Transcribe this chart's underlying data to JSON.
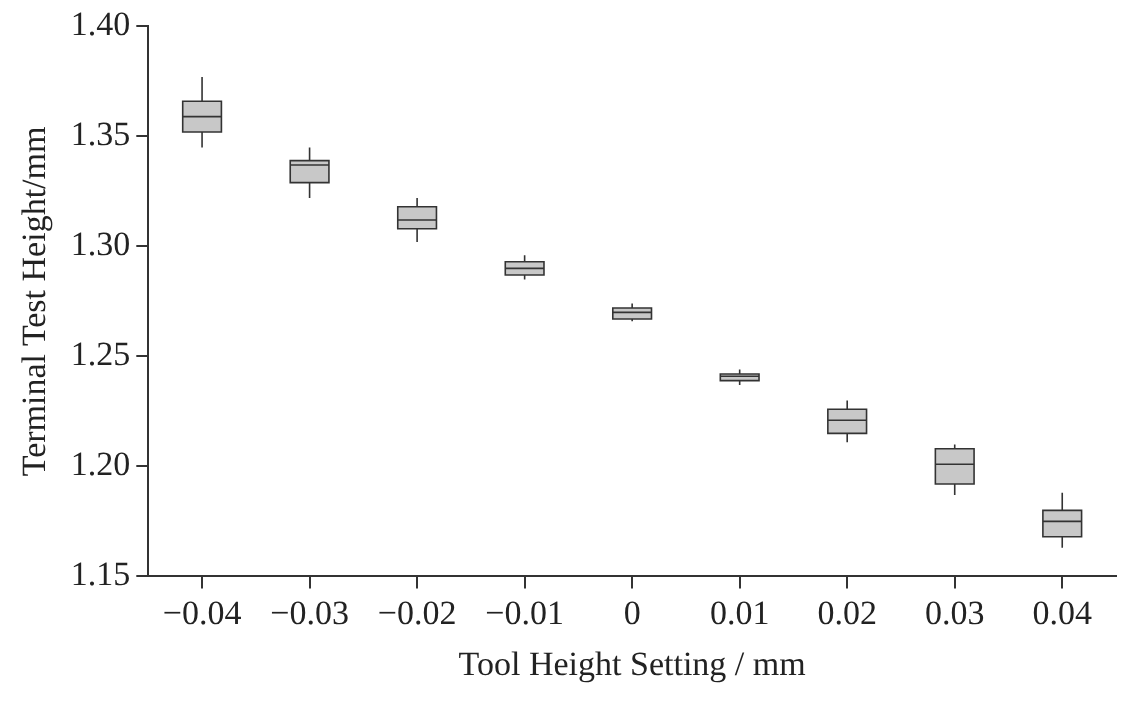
{
  "chart_data": {
    "type": "box",
    "xlabel": "Tool Height Setting / mm",
    "ylabel": "Terminal Test Height/mm",
    "categories": [
      "−0.04",
      "−0.03",
      "−0.02",
      "−0.01",
      "0",
      "0.01",
      "0.02",
      "0.03",
      "0.04"
    ],
    "color": "#c8c8c8",
    "boxes": [
      {
        "low": 1.345,
        "q1": 1.352,
        "median": 1.359,
        "q3": 1.366,
        "high": 1.377
      },
      {
        "low": 1.322,
        "q1": 1.329,
        "median": 1.337,
        "q3": 1.339,
        "high": 1.345
      },
      {
        "low": 1.302,
        "q1": 1.308,
        "median": 1.312,
        "q3": 1.318,
        "high": 1.322
      },
      {
        "low": 1.285,
        "q1": 1.287,
        "median": 1.29,
        "q3": 1.293,
        "high": 1.296
      },
      {
        "low": 1.266,
        "q1": 1.267,
        "median": 1.27,
        "q3": 1.272,
        "high": 1.274
      },
      {
        "low": 1.237,
        "q1": 1.239,
        "median": 1.241,
        "q3": 1.242,
        "high": 1.244
      },
      {
        "low": 1.211,
        "q1": 1.215,
        "median": 1.221,
        "q3": 1.226,
        "high": 1.23
      },
      {
        "low": 1.187,
        "q1": 1.192,
        "median": 1.201,
        "q3": 1.208,
        "high": 1.21
      },
      {
        "low": 1.163,
        "q1": 1.168,
        "median": 1.175,
        "q3": 1.18,
        "high": 1.188
      }
    ],
    "ylim": [
      1.15,
      1.4
    ],
    "yticks": [
      1.15,
      {
        "value": 1.2,
        "label": "1.20"
      },
      1.25,
      {
        "value": 1.3,
        "label": "1.30"
      },
      1.35,
      {
        "value": 1.4,
        "label": "1.40"
      }
    ],
    "grid": false,
    "legend": false
  }
}
